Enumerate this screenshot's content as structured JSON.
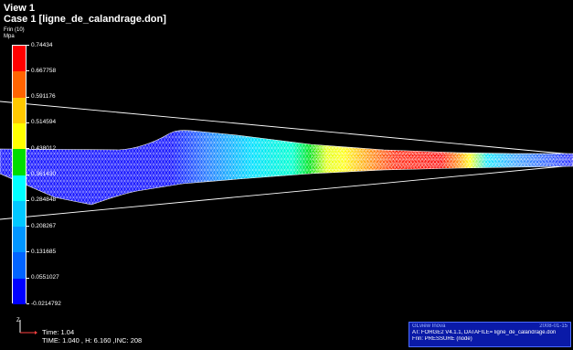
{
  "view": {
    "title": "View 1",
    "case_title": "Case 1  [ligne_de_calandrage.don]",
    "result_label": "Frin (10)",
    "unit": "Mpa"
  },
  "colorbar": {
    "ticks": [
      "0.74434",
      "0.667758",
      "0.591176",
      "0.514594",
      "0.438012",
      "0.361430",
      "0.284848",
      "0.208267",
      "0.131685",
      "0.0551027",
      "-0.0214792"
    ],
    "bands": [
      "#ff0000",
      "#ff6400",
      "#ffc800",
      "#ffff00",
      "#00dd00",
      "#00ffff",
      "#00c8ff",
      "#0096ff",
      "#0064ff",
      "#0000ff"
    ]
  },
  "status": {
    "time_line": "Time: 1.04",
    "stats_line": "TIME:  1.040    , H:  6.160    ,INC:   208"
  },
  "info_panel": {
    "product": "GLview Inova",
    "date": "2008-01-15",
    "line_at": "AT:   FORGE2  V4.1.1, DATAFILE= ligne_de_calandrage.don",
    "line_frin": "Frin:  PRESSURE (node)"
  },
  "axis": {
    "label": "Z"
  }
}
